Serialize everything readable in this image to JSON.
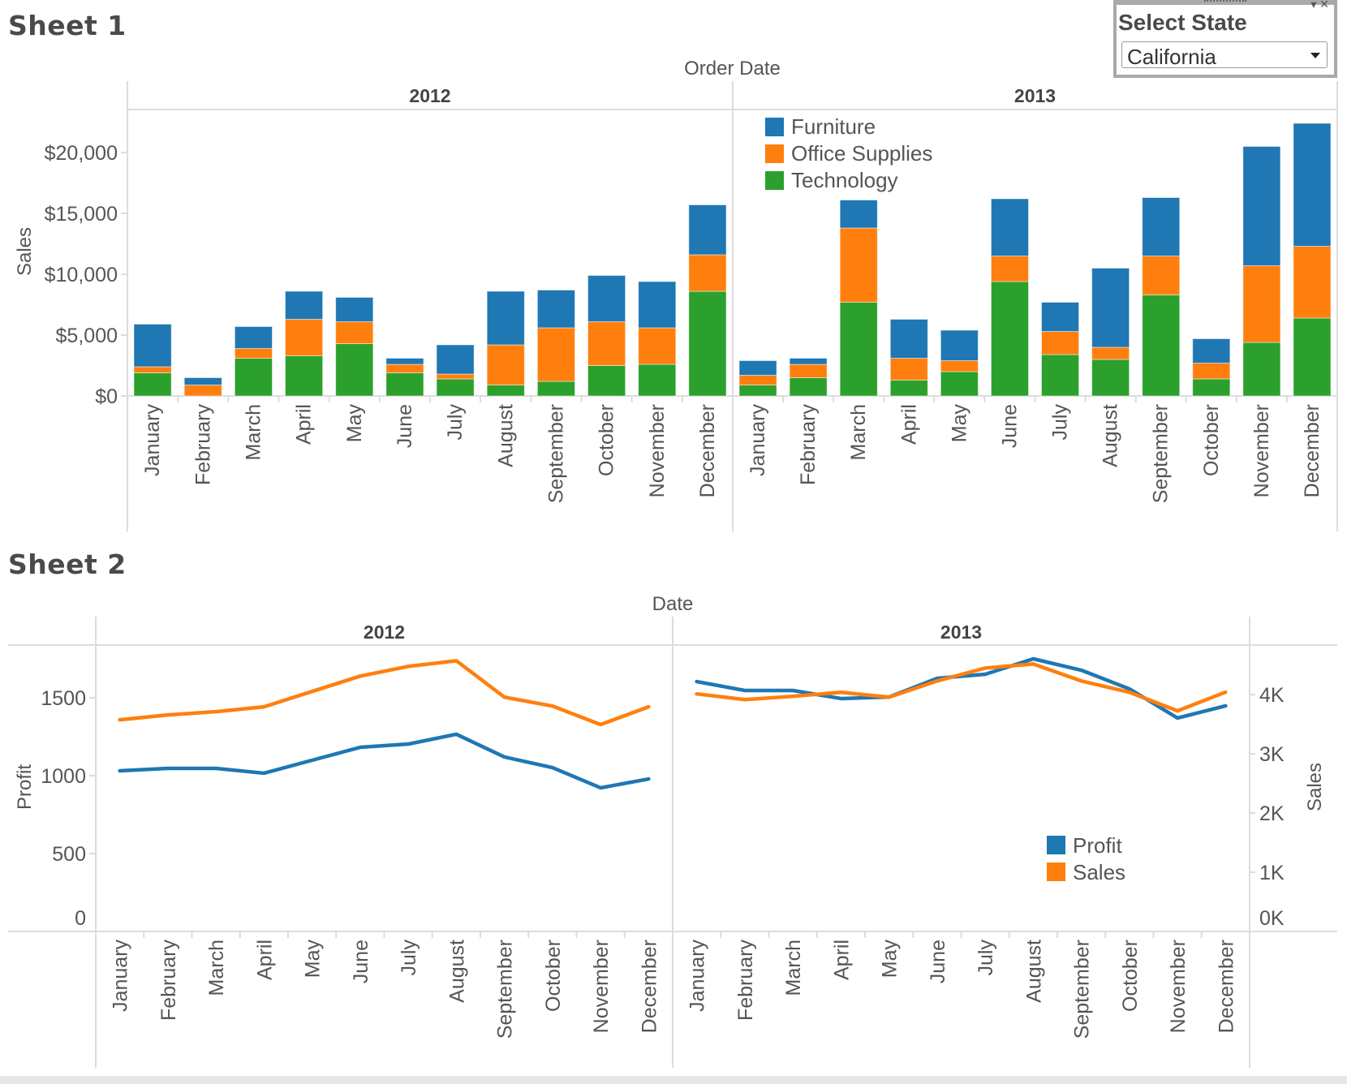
{
  "sheet1": {
    "title": "Sheet 1",
    "filter": {
      "title": "Select State",
      "selected": "California"
    }
  },
  "sheet2": {
    "title": "Sheet 2"
  },
  "colors": {
    "furniture": "#1f77b4",
    "office_supplies": "#ff7f0e",
    "technology": "#2ca02c",
    "profit": "#1f77b4",
    "sales": "#ff7f0e",
    "axis_text": "#555555",
    "grid": "#dcdcdc"
  },
  "chart_data": [
    {
      "type": "bar",
      "stacked": true,
      "title": "Sheet 1",
      "column_header": "Order Date",
      "years": [
        "2012",
        "2013"
      ],
      "categories": [
        "January",
        "February",
        "March",
        "April",
        "May",
        "June",
        "July",
        "August",
        "September",
        "October",
        "November",
        "December"
      ],
      "ylabel": "Sales",
      "ylim": [
        0,
        23000
      ],
      "yticks": [
        0,
        5000,
        10000,
        15000,
        20000
      ],
      "ytick_labels": [
        "$0",
        "$5,000",
        "$10,000",
        "$15,000",
        "$20,000"
      ],
      "legend": {
        "position": "top-left of 2013 pane",
        "entries": [
          "Furniture",
          "Office Supplies",
          "Technology"
        ]
      },
      "series": [
        {
          "name": "Technology",
          "color": "#2ca02c",
          "values": {
            "2012": [
              1900,
              0,
              3100,
              3300,
              4300,
              1900,
              1400,
              900,
              1200,
              2500,
              2600,
              8600
            ],
            "2013": [
              900,
              1500,
              7700,
              1300,
              2000,
              9400,
              3400,
              3000,
              8300,
              1400,
              4400,
              6400
            ]
          }
        },
        {
          "name": "Office Supplies",
          "color": "#ff7f0e",
          "values": {
            "2012": [
              500,
              900,
              800,
              3000,
              1800,
              700,
              400,
              3300,
              4400,
              3600,
              3000,
              3000
            ],
            "2013": [
              800,
              1100,
              6100,
              1800,
              900,
              2100,
              1900,
              1000,
              3200,
              1300,
              6300,
              5900
            ]
          }
        },
        {
          "name": "Furniture",
          "color": "#1f77b4",
          "values": {
            "2012": [
              3500,
              600,
              1800,
              2300,
              2000,
              500,
              2400,
              4400,
              3100,
              3800,
              3800,
              4100
            ],
            "2013": [
              1200,
              500,
              2300,
              3200,
              2500,
              4700,
              2400,
              6500,
              4800,
              2000,
              9800,
              10100
            ]
          }
        }
      ]
    },
    {
      "type": "line",
      "dual_axis": true,
      "title": "Sheet 2",
      "column_header": "Date",
      "years": [
        "2012",
        "2013"
      ],
      "categories": [
        "January",
        "February",
        "March",
        "April",
        "May",
        "June",
        "July",
        "August",
        "September",
        "October",
        "November",
        "December"
      ],
      "ylabel_left": "Profit",
      "ylim_left": [
        0,
        1850
      ],
      "yticks_left": [
        0,
        500,
        1000,
        1500
      ],
      "ytick_labels_left": [
        "0",
        "500",
        "1000",
        "1500"
      ],
      "ylabel_right": "Sales",
      "ylim_right": [
        0,
        4850
      ],
      "yticks_right": [
        0,
        1000,
        2000,
        3000,
        4000
      ],
      "ytick_labels_right": [
        "0K",
        "1K",
        "2K",
        "3K",
        "4K"
      ],
      "legend": {
        "position": "bottom-right of 2013 pane",
        "entries": [
          "Profit",
          "Sales"
        ]
      },
      "series": [
        {
          "name": "Profit",
          "axis": "left",
          "color": "#1f77b4",
          "values": {
            "2012": [
              1031,
              1047,
              1047,
              1016,
              1099,
              1182,
              1203,
              1266,
              1120,
              1052,
              922,
              979
            ],
            "2013": [
              1604,
              1547,
              1547,
              1495,
              1505,
              1625,
              1651,
              1750,
              1677,
              1557,
              1370,
              1448
            ]
          }
        },
        {
          "name": "Sales",
          "axis": "right",
          "color": "#ff7f0e",
          "values": {
            "2012": [
              3574,
              3656,
              3711,
              3793,
              4052,
              4311,
              4475,
              4570,
              3956,
              3806,
              3493,
              3793
            ],
            "2013": [
              4011,
              3915,
              3970,
              4038,
              3956,
              4229,
              4447,
              4516,
              4229,
              4038,
              3724,
              4040
            ]
          }
        }
      ]
    }
  ]
}
